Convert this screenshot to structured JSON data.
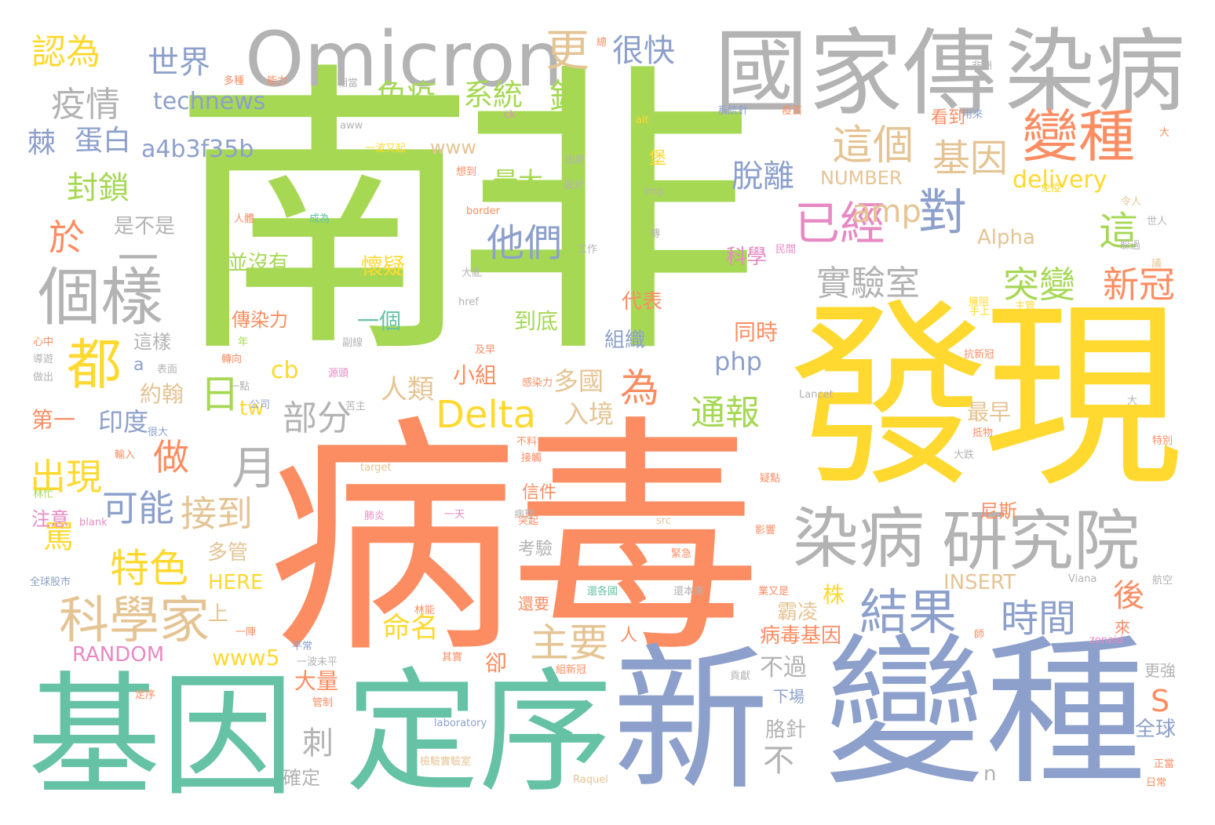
{
  "palette": {
    "green": "#a6d854",
    "orange": "#fc8d62",
    "yellow": "#ffd92f",
    "blue": "#8da0cb",
    "teal": "#66c2a5",
    "gray": "#b3b3b3",
    "pink": "#e78ac3",
    "tan": "#e5c494"
  },
  "words": {
    "w1": "南非",
    "w2": "病毒",
    "w3": "發現",
    "w4": "基因",
    "w5": "定序",
    "w6": "新",
    "w7": "變種",
    "w8": "國家傳",
    "w9": "染病",
    "w10": "Omicron",
    "w11": "變種",
    "w12": "染病",
    "w13": "研究院",
    "w14": "個樣",
    "w15": "科學家",
    "w16": "都",
    "w17": "Delta",
    "w18": "結果",
    "w19": "對",
    "w20": "已經",
    "w21": "這個",
    "w22": "基因",
    "w23": "實驗室",
    "w24": "突變",
    "w25": "新冠",
    "w26": "部分",
    "w27": "月",
    "w28": "日",
    "w29": "時間",
    "w30": "主要",
    "w31": "特色",
    "w32": "接到",
    "w33": "可能",
    "w34": "做",
    "w35": "出現",
    "w36": "於",
    "w37": "認為",
    "w38": "世界",
    "w39": "很快",
    "w40": "更",
    "w41": "疫情",
    "w42": "technews",
    "w43": "免疫",
    "w44": "系統",
    "w45": "錯",
    "w46": "蛋白",
    "w47": "a4b3f35b",
    "w48": "封鎖",
    "w49": "他們",
    "w50": "這",
    "w51": "amp",
    "w52": "通報",
    "w53": "為",
    "w54": "脫離",
    "w55": "最大",
    "w56": "delivery",
    "w57": "NUMBER",
    "w58": "www",
    "w59": "是不是",
    "w60": "並沒有",
    "w61": "懷疑",
    "w62": "傳染力",
    "w63": "一個",
    "w64": "到底",
    "w65": "代表",
    "w66": "科學",
    "w67": "組織",
    "w68": "同時",
    "w69": "php",
    "w70": "cb",
    "w71": "印度",
    "w72": "第一",
    "w73": "約翰",
    "w74": "人類",
    "w75": "多國",
    "w76": "入境",
    "w77": "tw",
    "w78": "小組",
    "w79": "罵",
    "w80": "HERE",
    "w81": "RANDOM",
    "w82": "www5",
    "w83": "命名",
    "w84": "株",
    "w85": "後",
    "w86": "病毒基因",
    "w87": "不過",
    "w88": "S",
    "w89": "INSERT",
    "w90": "Alpha",
    "w91": "全球",
    "w92": "刺",
    "w93": "不",
    "w94": "胳針",
    "w95": "大量",
    "w96": "確定",
    "w97": "卻",
    "w98": "信件",
    "w99": "尼斯",
    "w100": "最早",
    "w101": "霸凌",
    "w102": "一",
    "w103": "注意",
    "w104": "多管",
    "w105": "上",
    "w106": "還要",
    "w107": "考驗",
    "w108": "這樣",
    "w109": "a",
    "w110": "棘",
    "w111": "n",
    "w112": "堡",
    "w113": "看到",
    "w114": "人",
    "w115": "更強",
    "w116": "非洲",
    "w117": "系統針",
    "w118": "疫苗",
    "w119": "用來",
    "w120": "出新",
    "w121": "設計",
    "w122": "一波又起",
    "w123": "想到",
    "w124": "border",
    "w125": "img",
    "w126": "alt",
    "w127": "ck",
    "w128": "aww",
    "w129": "相當",
    "w130": "多種",
    "w131": "能力",
    "w132": "人體",
    "w133": "成為",
    "w134": "傳",
    "w135": "工作",
    "w136": "民間",
    "w137": "躲過",
    "w138": "大亂",
    "w139": "href",
    "w140": "擁阻",
    "w141": "心中",
    "w142": "導遊",
    "w143": "做出",
    "w144": "很大",
    "w145": "表面",
    "w146": "轉向",
    "w147": "一點",
    "w148": "公司",
    "w149": "苦主",
    "w150": "感染力",
    "w151": "及早",
    "w152": "抗新冠",
    "w153": "Lancet",
    "w154": "抵物",
    "w155": "大跌",
    "w156": "特別",
    "w157": "肺炎",
    "w158": "一天",
    "w159": "病理",
    "w160": "突起",
    "w161": "接觸",
    "w162": "不料",
    "w163": "target",
    "w164": "林忙",
    "w165": "blank",
    "w166": "src",
    "w167": "影響",
    "w168": "疑點",
    "w169": "全球股市",
    "w170": "緊急",
    "w171": "還各國",
    "w172": "還本來",
    "w173": "業又是",
    "w174": "Viana",
    "w175": "航空",
    "w176": "一陣",
    "w177": "平常",
    "w178": "一波未平",
    "w179": "其實",
    "w180": "組新冠",
    "w181": "貢獻",
    "w182": "下場",
    "w183": "zoneid",
    "w184": "師",
    "w185": "laboratory",
    "w186": "管制",
    "w187": "定序",
    "w188": "檢驗實驗室",
    "w189": "Raquel",
    "w190": "正當",
    "w191": "日常",
    "w192": "手上",
    "w193": "主管",
    "w194": "議",
    "w195": "大",
    "w196": "免疫",
    "w197": "令人",
    "w198": "世人",
    "w199": "源頭",
    "w200": "年",
    "w201": "副線",
    "w202": "總",
    "w203": "大",
    "w204": "輸入",
    "w205": "來",
    "w206": "林能"
  }
}
